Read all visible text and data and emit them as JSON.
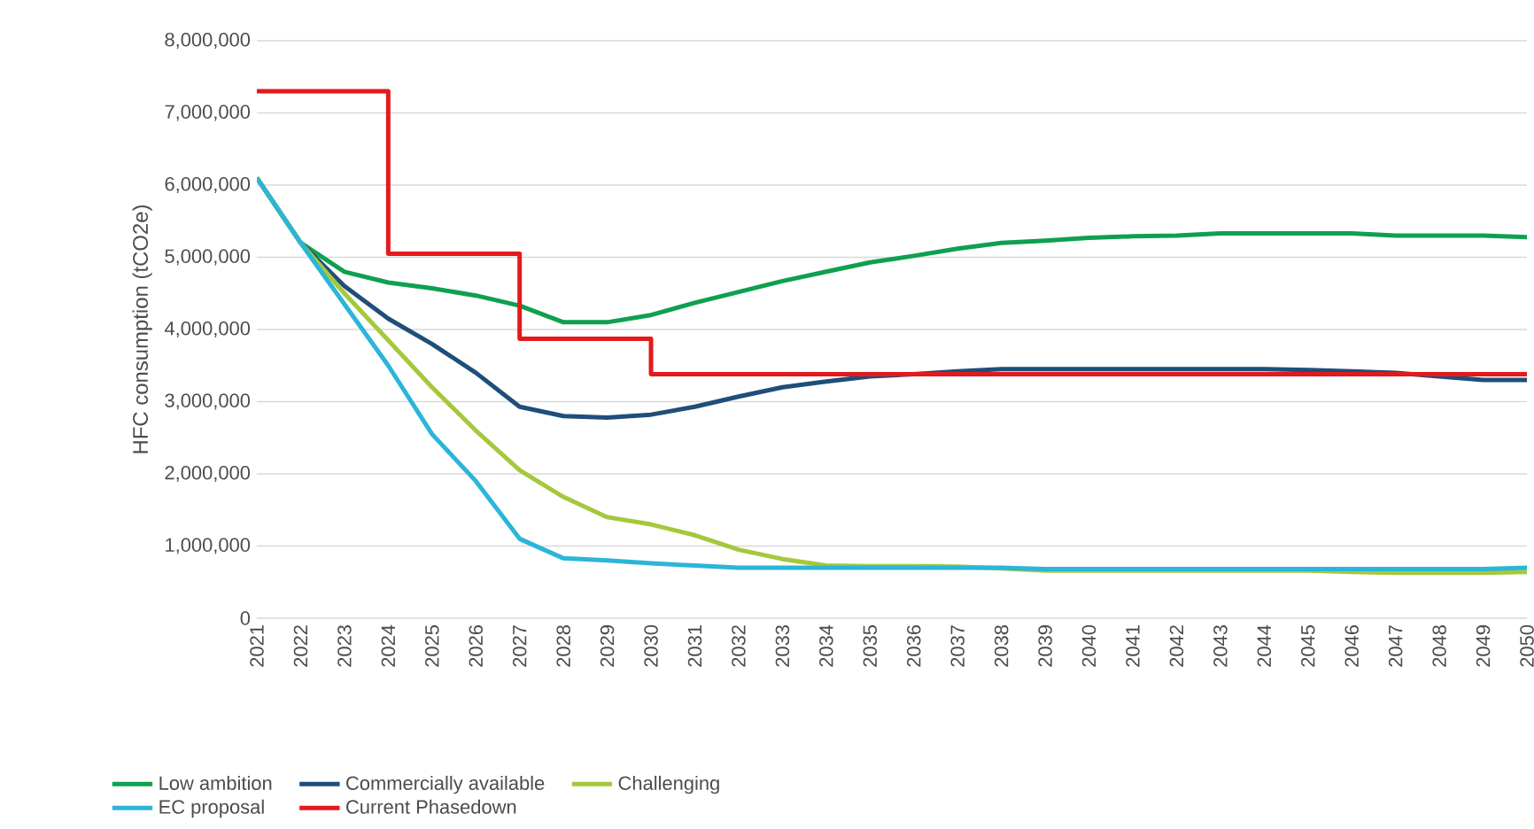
{
  "chart_data": {
    "type": "line",
    "ylabel": "HFC consumption (tCO2e)",
    "categories": [
      "2021",
      "2022",
      "2023",
      "2024",
      "2025",
      "2026",
      "2027",
      "2028",
      "2029",
      "2030",
      "2031",
      "2032",
      "2033",
      "2034",
      "2035",
      "2036",
      "2037",
      "2038",
      "2039",
      "2040",
      "2041",
      "2042",
      "2043",
      "2044",
      "2045",
      "2046",
      "2047",
      "2048",
      "2049",
      "2050"
    ],
    "ylim": [
      0,
      8000000
    ],
    "yticks": [
      {
        "value": 0,
        "label": "0"
      },
      {
        "value": 1000000,
        "label": "1,000,000"
      },
      {
        "value": 2000000,
        "label": "2,000,000"
      },
      {
        "value": 3000000,
        "label": "3,000,000"
      },
      {
        "value": 4000000,
        "label": "4,000,000"
      },
      {
        "value": 5000000,
        "label": "5,000,000"
      },
      {
        "value": 6000000,
        "label": "6,000,000"
      },
      {
        "value": 7000000,
        "label": "7,000,000"
      },
      {
        "value": 8000000,
        "label": "8,000,000"
      }
    ],
    "grid": "y",
    "legend": "bottom",
    "marker": "none",
    "line_style": "solid",
    "series": [
      {
        "name": "Low ambition",
        "color": "#0ea04f",
        "values": [
          6100000,
          5200000,
          4800000,
          4650000,
          4570000,
          4470000,
          4330000,
          4100000,
          4100000,
          4200000,
          4370000,
          4520000,
          4670000,
          4800000,
          4930000,
          5020000,
          5120000,
          5200000,
          5230000,
          5270000,
          5290000,
          5300000,
          5330000,
          5330000,
          5330000,
          5330000,
          5300000,
          5300000,
          5300000,
          5280000
        ]
      },
      {
        "name": "Commercially available",
        "color": "#1f4e79",
        "values": [
          6100000,
          5200000,
          4600000,
          4150000,
          3800000,
          3400000,
          2930000,
          2800000,
          2780000,
          2820000,
          2930000,
          3070000,
          3200000,
          3280000,
          3350000,
          3380000,
          3420000,
          3450000,
          3450000,
          3450000,
          3450000,
          3450000,
          3450000,
          3450000,
          3440000,
          3420000,
          3400000,
          3350000,
          3300000,
          3300000
        ]
      },
      {
        "name": "Challenging",
        "color": "#a5c83c",
        "values": [
          6100000,
          5200000,
          4500000,
          3850000,
          3200000,
          2600000,
          2050000,
          1680000,
          1400000,
          1300000,
          1150000,
          950000,
          820000,
          730000,
          720000,
          720000,
          715000,
          690000,
          660000,
          660000,
          660000,
          660000,
          660000,
          660000,
          660000,
          640000,
          630000,
          630000,
          630000,
          640000
        ]
      },
      {
        "name": "EC proposal",
        "color": "#2bb5d9",
        "values": [
          6100000,
          5200000,
          4350000,
          3500000,
          2550000,
          1900000,
          1100000,
          830000,
          800000,
          760000,
          730000,
          700000,
          700000,
          700000,
          700000,
          700000,
          700000,
          700000,
          680000,
          680000,
          680000,
          680000,
          680000,
          680000,
          680000,
          680000,
          680000,
          680000,
          680000,
          700000
        ]
      },
      {
        "name": "Current Phasedown",
        "type": "step",
        "color": "#e31a1c",
        "values": [
          7300000,
          7300000,
          7300000,
          5050000,
          5050000,
          5050000,
          3870000,
          3870000,
          3870000,
          3380000,
          3380000,
          3380000,
          3380000,
          3380000,
          3380000,
          3380000,
          3380000,
          3380000,
          3380000,
          3380000,
          3380000,
          3380000,
          3380000,
          3380000,
          3380000,
          3380000,
          3380000,
          3380000,
          3380000,
          3380000
        ]
      }
    ]
  }
}
